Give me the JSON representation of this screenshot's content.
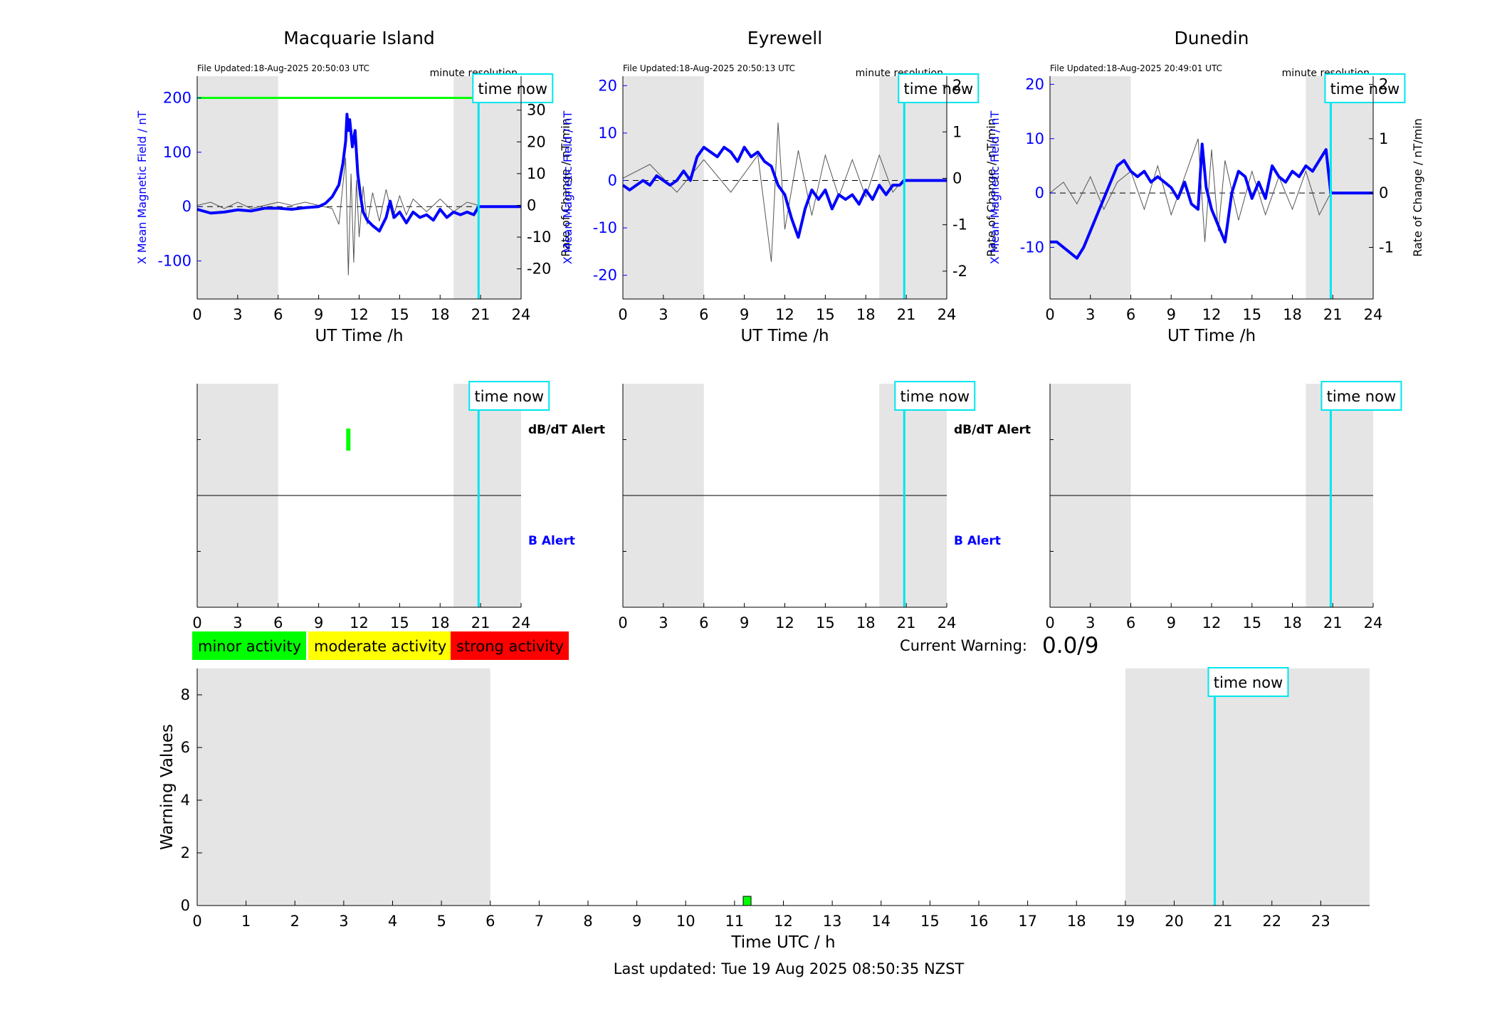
{
  "footer_text": "Last updated: Tue 19 Aug 2025 08:50:35 NZST",
  "time_now_label": "time now",
  "minute_resolution_label": "minute resolution",
  "x_axis_label_top": "UT Time /h",
  "left_axis_label": "X Mean Magnetic Field / nT",
  "right_axis_label": "Rate of Change / nT/min",
  "dbdt_alert_label": "dB/dT Alert",
  "b_alert_label": "B Alert",
  "legend": [
    {
      "label": "minor activity",
      "color": "#00ff00"
    },
    {
      "label": "moderate activity",
      "color": "#ffff00"
    },
    {
      "label": "strong activity",
      "color": "#ff0000"
    }
  ],
  "current_warning": {
    "label": "Current Warning:",
    "value": "0.0/9"
  },
  "colors": {
    "field": "#0000ff",
    "rate": "#555555",
    "time_now": "#00e5ee",
    "night_shade": "#e5e5e5",
    "threshold": "#00ff00"
  },
  "chart_data": [
    {
      "type": "line",
      "title": "Macquarie Island",
      "file_updated": "File Updated:18-Aug-2025 20:50:03 UTC",
      "xlabel": "UT Time /h",
      "xlim": [
        0,
        24
      ],
      "xticks": [
        0,
        3,
        6,
        9,
        12,
        15,
        18,
        21,
        24
      ],
      "ylim_left": [
        -170,
        240
      ],
      "yticks_left": [
        -100,
        0,
        100,
        200
      ],
      "ylim_right": [
        -29.5,
        40.7
      ],
      "yticks_right": [
        -20,
        -10,
        0,
        10,
        20,
        30
      ],
      "time_now": 20.85,
      "night_shading": [
        [
          0,
          6
        ],
        [
          19,
          24
        ]
      ],
      "threshold_level": 200,
      "series": [
        {
          "name": "X Mean Magnetic Field / nT",
          "x": [
            0,
            1,
            2,
            3,
            4,
            5,
            6,
            7,
            8,
            9,
            9.5,
            10,
            10.5,
            10.8,
            11,
            11.1,
            11.2,
            11.3,
            11.5,
            11.7,
            11.9,
            12.1,
            12.3,
            12.6,
            13,
            13.5,
            14,
            14.3,
            14.6,
            15,
            15.5,
            16,
            16.5,
            17,
            17.5,
            18,
            18.5,
            19,
            19.5,
            20,
            20.5,
            20.85,
            24
          ],
          "y": [
            -5,
            -12,
            -10,
            -6,
            -8,
            -3,
            -3,
            -5,
            -2,
            0,
            6,
            18,
            40,
            80,
            120,
            170,
            140,
            160,
            110,
            140,
            60,
            20,
            -10,
            -25,
            -35,
            -45,
            -20,
            10,
            -20,
            -10,
            -30,
            -10,
            -20,
            -15,
            -25,
            -5,
            -20,
            -10,
            -15,
            -10,
            -15,
            0,
            0
          ]
        },
        {
          "name": "Rate of Change / nT/min",
          "x": [
            0,
            1,
            2,
            3,
            4,
            5,
            6,
            7,
            8,
            9,
            10,
            10.5,
            11,
            11.2,
            11.4,
            11.6,
            11.8,
            12,
            12.3,
            12.6,
            13,
            13.5,
            14,
            14.5,
            15,
            15.5,
            16,
            17,
            18,
            19,
            20,
            20.85
          ],
          "y": [
            0,
            1,
            -1,
            1,
            -1,
            0,
            1,
            0,
            1,
            0,
            -1,
            -6,
            15,
            -22,
            10,
            -18,
            8,
            -10,
            6,
            -6,
            4,
            -5,
            5,
            -4,
            3,
            -3,
            2,
            -2,
            2,
            -2,
            1,
            0
          ]
        }
      ]
    },
    {
      "type": "line",
      "title": "Eyrewell",
      "file_updated": "File Updated:18-Aug-2025 20:50:13 UTC",
      "xlabel": "UT Time /h",
      "xlim": [
        0,
        24
      ],
      "xticks": [
        0,
        3,
        6,
        9,
        12,
        15,
        18,
        21,
        24
      ],
      "ylim_left": [
        -25,
        22
      ],
      "yticks_left": [
        -20,
        -10,
        0,
        10,
        20
      ],
      "ylim_right": [
        -2.6,
        2.2
      ],
      "yticks_right": [
        -2,
        -1,
        0,
        1,
        2
      ],
      "time_now": 20.85,
      "night_shading": [
        [
          0,
          6
        ],
        [
          19,
          24
        ]
      ],
      "series": [
        {
          "name": "X Mean Magnetic Field / nT",
          "x": [
            0,
            0.5,
            1,
            1.5,
            2,
            2.5,
            3,
            3.5,
            4,
            4.5,
            5,
            5.5,
            6,
            6.5,
            7,
            7.5,
            8,
            8.5,
            9,
            9.5,
            10,
            10.5,
            11,
            11.5,
            12,
            12.5,
            13,
            13.5,
            14,
            14.5,
            15,
            15.5,
            16,
            16.5,
            17,
            17.5,
            18,
            18.5,
            19,
            19.5,
            20,
            20.5,
            20.85,
            24
          ],
          "y": [
            -1,
            -2,
            -1,
            0,
            -1,
            1,
            0,
            -1,
            0,
            2,
            0,
            5,
            7,
            6,
            5,
            7,
            6,
            4,
            7,
            5,
            6,
            4,
            3,
            -1,
            -3,
            -8,
            -12,
            -6,
            -2,
            -4,
            -2,
            -6,
            -3,
            -4,
            -3,
            -5,
            -2,
            -4,
            -1,
            -3,
            -1,
            -1,
            0,
            0
          ]
        },
        {
          "name": "Rate of Change / nT/min",
          "x": [
            0,
            2,
            4,
            6,
            8,
            10,
            11,
            11.5,
            12,
            13,
            14,
            15,
            16,
            17,
            18,
            19,
            20,
            20.85
          ],
          "y": [
            0,
            0.3,
            -0.3,
            0.4,
            -0.3,
            0.5,
            -1.8,
            1.2,
            -1.1,
            0.6,
            -0.8,
            0.5,
            -0.4,
            0.4,
            -0.4,
            0.5,
            -0.3,
            0
          ]
        }
      ]
    },
    {
      "type": "line",
      "title": "Dunedin",
      "file_updated": "File Updated:18-Aug-2025 20:49:01 UTC",
      "xlabel": "UT Time /h",
      "xlim": [
        0,
        24
      ],
      "xticks": [
        0,
        3,
        6,
        9,
        12,
        15,
        18,
        21,
        24
      ],
      "ylim_left": [
        -19.5,
        21.5
      ],
      "yticks_left": [
        -10,
        0,
        10,
        20
      ],
      "ylim_right": [
        -1.95,
        2.15
      ],
      "yticks_right": [
        -1,
        0,
        1,
        2
      ],
      "time_now": 20.85,
      "night_shading": [
        [
          0,
          6
        ],
        [
          19,
          24
        ]
      ],
      "series": [
        {
          "name": "X Mean Magnetic Field / nT",
          "x": [
            0,
            0.5,
            1,
            1.5,
            2,
            2.5,
            3,
            3.5,
            4,
            4.5,
            5,
            5.5,
            6,
            6.5,
            7,
            7.5,
            8,
            8.5,
            9,
            9.5,
            10,
            10.5,
            11,
            11.3,
            11.6,
            12,
            12.5,
            13,
            13.5,
            14,
            14.5,
            15,
            15.5,
            16,
            16.5,
            17,
            17.5,
            18,
            18.5,
            19,
            19.5,
            20,
            20.5,
            20.85,
            24
          ],
          "y": [
            -9,
            -9,
            -10,
            -11,
            -12,
            -10,
            -7,
            -4,
            -1,
            2,
            5,
            6,
            4,
            3,
            4,
            2,
            3,
            2,
            1,
            -1,
            2,
            -2,
            -3,
            9,
            1,
            -3,
            -6,
            -9,
            0,
            4,
            3,
            -1,
            2,
            -1,
            5,
            3,
            2,
            4,
            3,
            5,
            4,
            6,
            8,
            0,
            0
          ]
        },
        {
          "name": "Rate of Change / nT/min",
          "x": [
            0,
            1,
            2,
            3,
            4,
            5,
            6,
            7,
            8,
            9,
            10,
            11,
            11.5,
            12,
            12.5,
            13,
            14,
            15,
            16,
            17,
            18,
            19,
            20,
            20.85
          ],
          "y": [
            0,
            0.2,
            -0.2,
            0.3,
            -0.3,
            0.2,
            0.4,
            -0.3,
            0.5,
            -0.4,
            0.3,
            1.0,
            -0.9,
            0.8,
            -0.7,
            0.6,
            -0.5,
            0.4,
            -0.4,
            0.3,
            -0.3,
            0.4,
            -0.4,
            0
          ]
        }
      ]
    },
    {
      "type": "bar",
      "title": "",
      "xlabel": "Time UTC / h",
      "ylabel": "Warning Values",
      "xlim": [
        0,
        24
      ],
      "xticks": [
        0,
        1,
        2,
        3,
        4,
        5,
        6,
        7,
        8,
        9,
        10,
        11,
        12,
        13,
        14,
        15,
        16,
        17,
        18,
        19,
        20,
        21,
        22,
        23
      ],
      "ylim": [
        0,
        9
      ],
      "yticks": [
        0,
        2,
        4,
        6,
        8
      ],
      "time_now": 20.83,
      "night_shading": [
        [
          0,
          6
        ],
        [
          19,
          24
        ]
      ],
      "bars": [
        {
          "x": 11.25,
          "value": 0.35,
          "level": "minor activity"
        }
      ]
    }
  ],
  "alert_panels": [
    {
      "station": "Macquarie Island",
      "time_now": 20.85,
      "dbdt_alerts": [
        {
          "x": 11.2,
          "level": "minor activity"
        }
      ],
      "b_alerts": []
    },
    {
      "station": "Eyrewell",
      "time_now": 20.85,
      "dbdt_alerts": [],
      "b_alerts": []
    },
    {
      "station": "Dunedin",
      "time_now": 20.85,
      "dbdt_alerts": [],
      "b_alerts": []
    }
  ]
}
